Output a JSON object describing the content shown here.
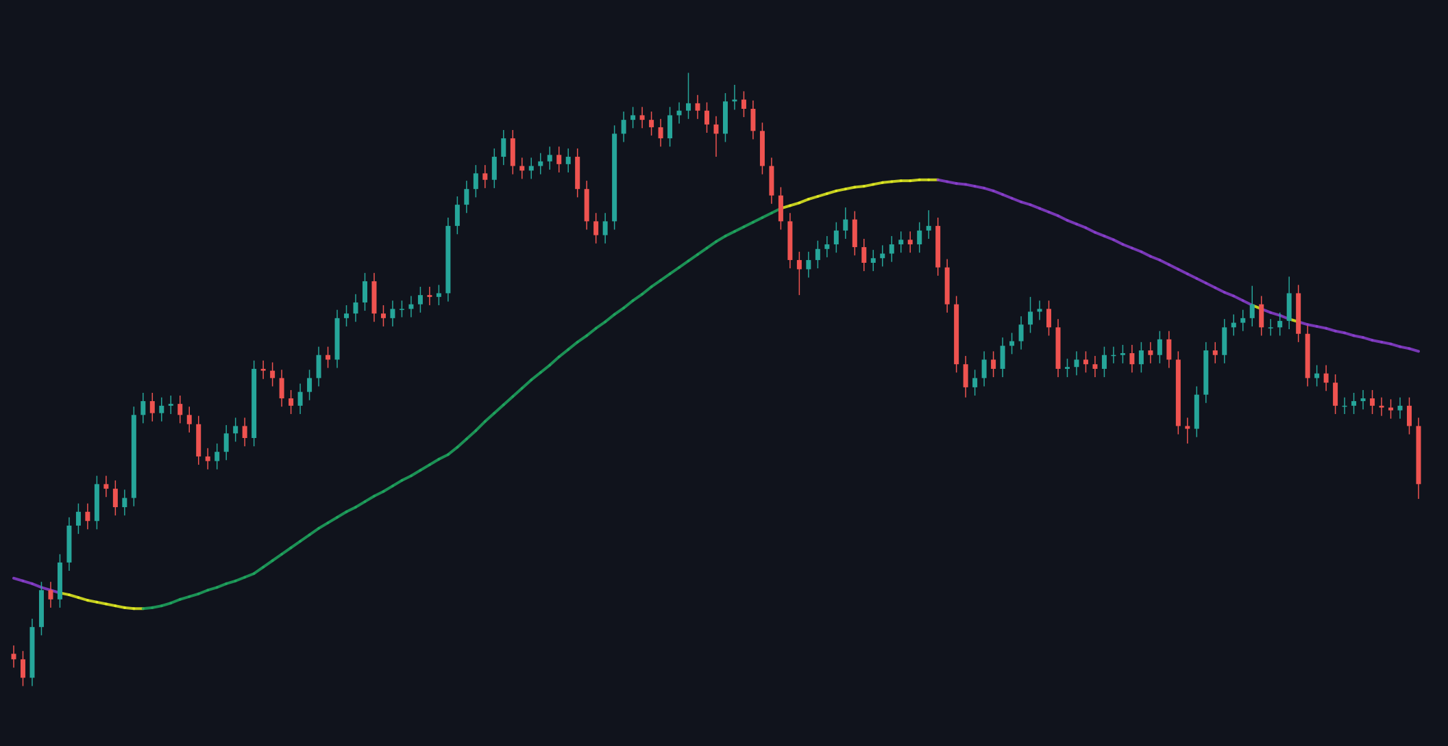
{
  "chart_data": {
    "type": "candlestick",
    "ylim": [
      0,
      809
    ],
    "up_color": "#26a69a",
    "down_color": "#ef5350",
    "open": [
      100,
      94,
      74,
      129,
      169,
      159,
      199,
      239,
      254,
      244,
      284,
      279,
      259,
      269,
      359,
      374,
      361,
      369,
      371,
      359,
      349,
      314,
      309,
      319,
      339,
      347,
      334,
      409,
      407,
      399,
      377,
      369,
      384,
      399,
      424,
      419,
      464,
      469,
      481,
      504,
      469,
      464,
      474,
      474,
      479,
      489,
      487,
      491,
      564,
      587,
      604,
      621,
      614,
      639,
      659,
      629,
      624,
      629,
      634,
      641,
      631,
      639,
      604,
      569,
      554,
      569,
      664,
      679,
      684,
      679,
      671,
      659,
      684,
      689,
      697,
      689,
      674,
      664,
      699,
      701,
      691,
      667,
      629,
      597,
      569,
      527,
      517,
      527,
      539,
      544,
      559,
      571,
      541,
      524,
      529,
      534,
      544,
      549,
      544,
      559,
      564,
      519,
      479,
      414,
      389,
      399,
      419,
      409,
      434,
      439,
      457,
      471,
      474,
      454,
      409,
      411,
      419,
      414,
      409,
      424,
      424,
      426,
      414,
      429,
      424,
      441,
      419,
      347,
      344,
      381,
      429,
      424,
      454,
      459,
      464,
      479,
      454,
      454,
      461,
      491,
      447,
      399,
      404,
      394,
      369,
      369,
      374,
      377,
      369,
      367,
      364,
      369,
      347
    ],
    "high": [
      109,
      103,
      138,
      178,
      178,
      208,
      248,
      263,
      263,
      293,
      293,
      288,
      278,
      368,
      383,
      383,
      378,
      380,
      380,
      368,
      358,
      323,
      328,
      348,
      356,
      356,
      418,
      418,
      416,
      408,
      386,
      393,
      408,
      433,
      433,
      473,
      478,
      490,
      513,
      513,
      478,
      483,
      483,
      488,
      498,
      498,
      500,
      573,
      596,
      613,
      630,
      630,
      648,
      668,
      668,
      638,
      638,
      643,
      650,
      650,
      648,
      648,
      613,
      578,
      578,
      673,
      688,
      693,
      693,
      688,
      680,
      693,
      698,
      730,
      706,
      698,
      683,
      708,
      717,
      710,
      700,
      676,
      638,
      606,
      578,
      536,
      536,
      548,
      553,
      568,
      584,
      580,
      550,
      538,
      543,
      553,
      558,
      558,
      568,
      581,
      573,
      528,
      488,
      423,
      408,
      428,
      428,
      443,
      448,
      466,
      487,
      483,
      483,
      463,
      420,
      428,
      428,
      423,
      433,
      433,
      435,
      435,
      438,
      438,
      450,
      450,
      428,
      356,
      390,
      438,
      438,
      463,
      468,
      473,
      499,
      488,
      463,
      470,
      509,
      500,
      456,
      413,
      413,
      403,
      378,
      383,
      386,
      386,
      378,
      376,
      378,
      378,
      356
    ],
    "low": [
      85,
      65,
      65,
      120,
      150,
      150,
      190,
      230,
      235,
      235,
      270,
      250,
      250,
      260,
      350,
      352,
      352,
      360,
      350,
      340,
      305,
      300,
      300,
      310,
      330,
      325,
      325,
      398,
      390,
      368,
      360,
      360,
      375,
      390,
      410,
      410,
      455,
      460,
      472,
      460,
      455,
      455,
      465,
      465,
      470,
      478,
      478,
      482,
      555,
      578,
      595,
      605,
      605,
      630,
      620,
      615,
      615,
      620,
      625,
      622,
      622,
      595,
      560,
      545,
      545,
      560,
      655,
      670,
      670,
      662,
      650,
      650,
      675,
      680,
      680,
      665,
      639,
      655,
      690,
      682,
      658,
      620,
      588,
      560,
      518,
      489,
      508,
      518,
      530,
      535,
      550,
      532,
      515,
      515,
      520,
      525,
      535,
      535,
      535,
      550,
      510,
      470,
      405,
      378,
      380,
      390,
      400,
      400,
      425,
      430,
      448,
      462,
      445,
      400,
      400,
      402,
      405,
      400,
      400,
      415,
      415,
      405,
      405,
      415,
      415,
      410,
      338,
      328,
      335,
      372,
      415,
      415,
      445,
      450,
      455,
      445,
      445,
      445,
      452,
      438,
      390,
      390,
      385,
      360,
      360,
      360,
      365,
      360,
      358,
      355,
      355,
      338,
      268
    ],
    "close": [
      94,
      74,
      129,
      169,
      159,
      199,
      239,
      254,
      244,
      284,
      279,
      259,
      269,
      359,
      374,
      361,
      369,
      371,
      359,
      349,
      314,
      309,
      319,
      339,
      347,
      334,
      409,
      407,
      399,
      377,
      369,
      384,
      399,
      424,
      419,
      464,
      469,
      481,
      504,
      469,
      464,
      474,
      474,
      479,
      489,
      487,
      491,
      564,
      587,
      604,
      621,
      614,
      639,
      659,
      629,
      624,
      629,
      634,
      641,
      631,
      639,
      604,
      569,
      554,
      569,
      664,
      679,
      684,
      679,
      671,
      659,
      684,
      689,
      697,
      689,
      674,
      664,
      699,
      701,
      691,
      667,
      629,
      597,
      569,
      527,
      517,
      527,
      539,
      544,
      559,
      571,
      541,
      524,
      529,
      534,
      544,
      549,
      544,
      559,
      564,
      519,
      479,
      414,
      389,
      399,
      419,
      409,
      434,
      439,
      457,
      471,
      474,
      454,
      409,
      411,
      419,
      414,
      409,
      424,
      424,
      426,
      414,
      429,
      424,
      441,
      419,
      347,
      344,
      381,
      429,
      424,
      454,
      459,
      464,
      479,
      454,
      454,
      461,
      491,
      447,
      399,
      404,
      394,
      369,
      369,
      374,
      377,
      369,
      367,
      364,
      369,
      347,
      284
    ],
    "ma": {
      "up_color": "#1fa85f",
      "down_color": "#8b3fd0",
      "cross_color": "#e4ee22",
      "values": [
        182,
        179,
        176,
        172,
        169,
        166,
        164,
        161,
        158,
        156,
        154,
        152,
        150,
        149,
        149,
        150,
        152,
        155,
        159,
        162,
        165,
        169,
        172,
        176,
        179,
        183,
        187,
        194,
        201,
        208,
        215,
        222,
        229,
        236,
        242,
        248,
        254,
        259,
        265,
        271,
        276,
        282,
        288,
        293,
        299,
        305,
        311,
        316,
        324,
        333,
        342,
        352,
        361,
        370,
        379,
        388,
        397,
        405,
        413,
        422,
        430,
        438,
        445,
        453,
        460,
        468,
        475,
        483,
        490,
        498,
        505,
        512,
        519,
        526,
        533,
        540,
        547,
        553,
        558,
        563,
        568,
        573,
        578,
        583,
        586,
        589,
        593,
        596,
        599,
        602,
        604,
        606,
        607,
        609,
        611,
        612,
        613,
        613,
        614,
        614,
        614,
        612,
        610,
        609,
        607,
        605,
        602,
        598,
        594,
        590,
        587,
        583,
        579,
        575,
        570,
        566,
        562,
        557,
        553,
        549,
        544,
        540,
        536,
        531,
        527,
        522,
        517,
        512,
        507,
        502,
        497,
        492,
        488,
        483,
        478,
        474,
        470,
        467,
        463,
        460,
        457,
        455,
        453,
        450,
        448,
        445,
        443,
        440,
        438,
        436,
        433,
        431,
        428
      ]
    }
  }
}
